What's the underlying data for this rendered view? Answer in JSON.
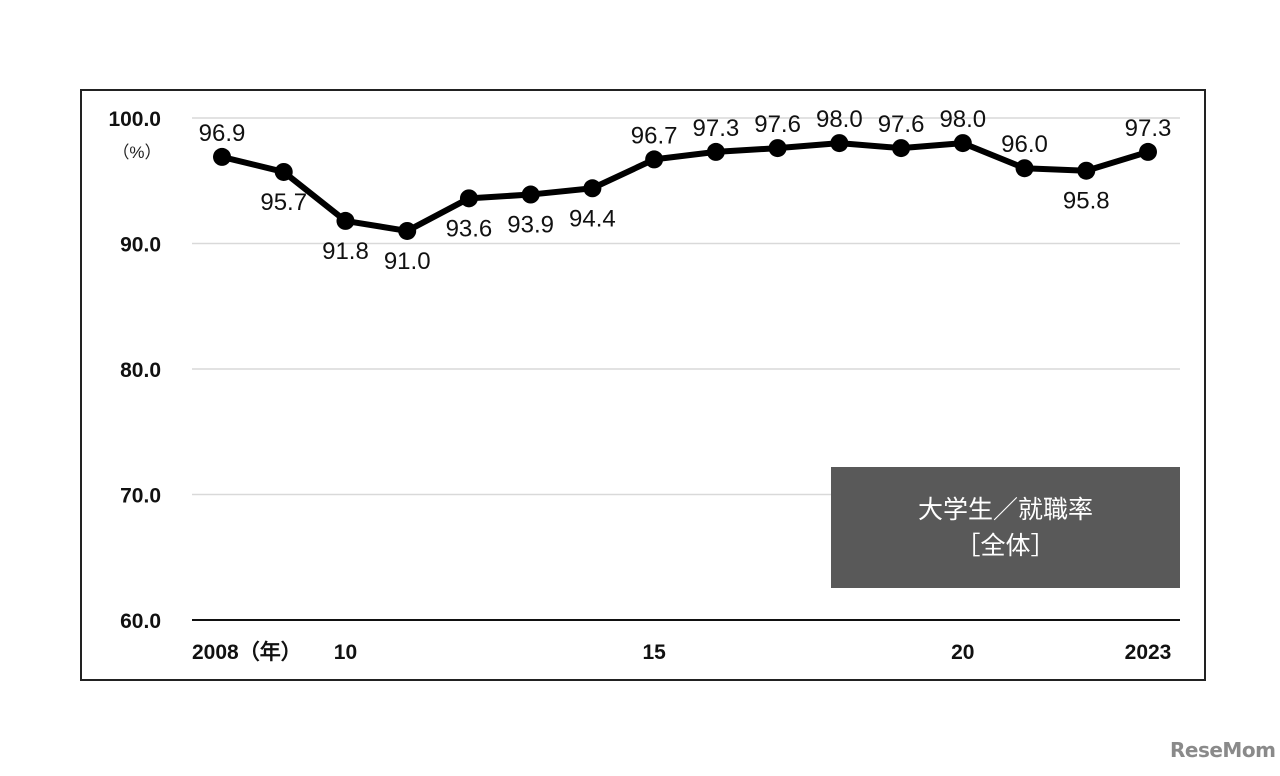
{
  "chart_data": {
    "type": "line",
    "title": "大学生／就職率［全体］",
    "legend_box": {
      "line1": "大学生／就職率",
      "line2": "［全体］"
    },
    "xlabel": "(年)",
    "ylabel": "(%)",
    "x": [
      2008,
      2009,
      2010,
      2011,
      2012,
      2013,
      2014,
      2015,
      2016,
      2017,
      2018,
      2019,
      2020,
      2021,
      2022,
      2023
    ],
    "series": [
      {
        "name": "大学生 就職率 全体",
        "values": [
          96.9,
          95.7,
          91.8,
          91.0,
          93.6,
          93.9,
          94.4,
          96.7,
          97.3,
          97.6,
          98.0,
          97.6,
          98.0,
          96.0,
          95.8,
          97.3
        ]
      }
    ],
    "x_tick_labels": [
      {
        "year": 2008,
        "label": "2008（年）"
      },
      {
        "year": 2010,
        "label": "10"
      },
      {
        "year": 2015,
        "label": "15"
      },
      {
        "year": 2020,
        "label": "20"
      },
      {
        "year": 2023,
        "label": "2023"
      }
    ],
    "y_ticks": [
      "60.0",
      "70.0",
      "80.0",
      "90.0",
      "100.0"
    ],
    "ylim": [
      60,
      100
    ],
    "y_unit": "（%）",
    "grid": true,
    "line_color": "#000000",
    "legend_bg": "#595959"
  },
  "watermark": "ReseMom"
}
